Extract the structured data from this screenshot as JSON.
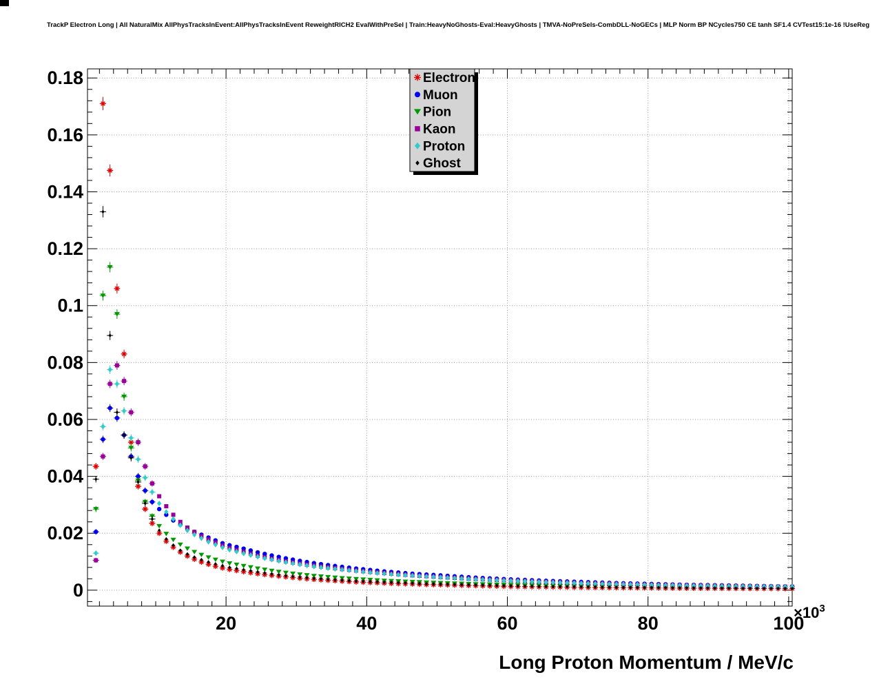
{
  "header": {
    "title": "TrackP Electron Long | All NaturalMix AllPhysTracksInEvent:AllPhysTracksInEvent ReweightRICH2 EvalWithPreSel | Train:HeavyNoGhosts-Eval:HeavyGhosts | TMVA-NoPreSels-CombDLL-NoGECs | MLP Norm BP NCycles750 CE tanh SF1.4 CVTest15:1e-16 !UseReg"
  },
  "chart_data": {
    "type": "scatter",
    "title": "TrackP Electron Long",
    "xlabel": "Long Proton Momentum / MeV/c",
    "ylabel": "",
    "x_multiplier_base": "×10",
    "x_multiplier_exp": "3",
    "xlim": [
      0.3,
      100.5
    ],
    "ylim": [
      -0.0056,
      0.1832
    ],
    "grid": true,
    "legend_position": "top-center",
    "x_tick_values": [
      20,
      40,
      60,
      80,
      100
    ],
    "x_tick_labels": [
      "20",
      "40",
      "60",
      "80",
      "100"
    ],
    "y_tick_values": [
      0,
      0.02,
      0.04,
      0.06,
      0.08,
      0.1,
      0.12,
      0.14,
      0.16,
      0.18
    ],
    "y_tick_labels": [
      "0",
      "0.02",
      "0.04",
      "0.06",
      "0.08",
      "0.1",
      "0.12",
      "0.14",
      "0.16",
      "0.18"
    ],
    "x_minor_step": 2,
    "y_minor_step": 0.004,
    "x": [
      1.5,
      2.5,
      3.5,
      4.5,
      5.5,
      6.5,
      7.5,
      8.5,
      9.5,
      10.5,
      11.5,
      12.5,
      13.5,
      14.5,
      15.5,
      16.5,
      17.5,
      18.5,
      19.5,
      20.5,
      22.5,
      24.5,
      26.5,
      28.5,
      30.5,
      32.5,
      34.5,
      36.5,
      38.5,
      40.5,
      42.5,
      44.5,
      46.5,
      48.5,
      50.5,
      55.5,
      60.5,
      65.5,
      70.5,
      75.5,
      80.5,
      85.5,
      90.5,
      95.5,
      100.5
    ],
    "series": [
      {
        "name": "Electron",
        "color": "#e00000",
        "marker": "star",
        "values": [
          0.0435,
          0.171,
          0.1475,
          0.106,
          0.083,
          0.052,
          0.0365,
          0.0285,
          0.0235,
          0.02,
          0.0172,
          0.0151,
          0.0134,
          0.012,
          0.0109,
          0.0099,
          0.0091,
          0.0084,
          0.0078,
          0.0073,
          0.0065,
          0.0058,
          0.0052,
          0.0047,
          0.0042,
          0.0038,
          0.0035,
          0.0032,
          0.0029,
          0.0027,
          0.0025,
          0.0023,
          0.0022,
          0.002,
          0.0019,
          0.0016,
          0.0013,
          0.0012,
          0.001,
          0.0009,
          0.0008,
          0.0007,
          0.00065,
          0.0006,
          0.00055
        ]
      },
      {
        "name": "Muon",
        "color": "#0000ee",
        "marker": "circle",
        "values": [
          0.0205,
          0.053,
          0.064,
          0.0605,
          0.0545,
          0.047,
          0.04,
          0.035,
          0.031,
          0.0285,
          0.0265,
          0.0245,
          0.023,
          0.0215,
          0.0205,
          0.0195,
          0.0185,
          0.0175,
          0.0165,
          0.0158,
          0.0146,
          0.0133,
          0.0122,
          0.0112,
          0.0103,
          0.0095,
          0.0088,
          0.0082,
          0.0076,
          0.0071,
          0.0066,
          0.0062,
          0.0058,
          0.0055,
          0.0052,
          0.0044,
          0.0038,
          0.0033,
          0.0029,
          0.0025,
          0.0022,
          0.0019,
          0.0017,
          0.0015,
          0.0013
        ]
      },
      {
        "name": "Pion",
        "color": "#009900",
        "marker": "triangle-down",
        "values": [
          0.0285,
          0.1035,
          0.1135,
          0.097,
          0.068,
          0.05,
          0.0385,
          0.031,
          0.026,
          0.0225,
          0.0198,
          0.0177,
          0.016,
          0.0146,
          0.0134,
          0.0124,
          0.0115,
          0.0107,
          0.01,
          0.0094,
          0.0085,
          0.0076,
          0.0068,
          0.0061,
          0.0055,
          0.005,
          0.0046,
          0.0042,
          0.0039,
          0.0036,
          0.0033,
          0.0031,
          0.0029,
          0.0027,
          0.0025,
          0.0021,
          0.0018,
          0.0015,
          0.0013,
          0.0012,
          0.001,
          0.0009,
          0.0008,
          0.0007,
          0.00065
        ]
      },
      {
        "name": "Kaon",
        "color": "#990099",
        "marker": "square",
        "values": [
          0.0105,
          0.047,
          0.0725,
          0.079,
          0.0735,
          0.0625,
          0.052,
          0.0435,
          0.0375,
          0.033,
          0.0295,
          0.0265,
          0.024,
          0.022,
          0.0205,
          0.019,
          0.0178,
          0.0167,
          0.0157,
          0.0148,
          0.0134,
          0.0121,
          0.011,
          0.0101,
          0.0093,
          0.0086,
          0.008,
          0.0074,
          0.0069,
          0.0064,
          0.006,
          0.0056,
          0.0052,
          0.0049,
          0.0046,
          0.0039,
          0.0034,
          0.0029,
          0.0025,
          0.0022,
          0.0019,
          0.0017,
          0.0015,
          0.0013,
          0.0012
        ]
      },
      {
        "name": "Proton",
        "color": "#33cccc",
        "marker": "diamond",
        "values": [
          0.013,
          0.0575,
          0.0775,
          0.0725,
          0.063,
          0.0535,
          0.046,
          0.0395,
          0.0345,
          0.0305,
          0.0275,
          0.025,
          0.0228,
          0.021,
          0.0195,
          0.0182,
          0.017,
          0.016,
          0.015,
          0.0142,
          0.0129,
          0.0117,
          0.0107,
          0.0098,
          0.009,
          0.0083,
          0.0077,
          0.0072,
          0.0067,
          0.0062,
          0.0058,
          0.0054,
          0.0051,
          0.0048,
          0.0045,
          0.0038,
          0.0033,
          0.0028,
          0.0024,
          0.0021,
          0.0018,
          0.0016,
          0.0014,
          0.0013,
          0.0012
        ]
      },
      {
        "name": "Ghost",
        "color": "#000000",
        "marker": "small-diamond",
        "values": [
          0.039,
          0.133,
          0.0895,
          0.0625,
          0.0545,
          0.0465,
          0.038,
          0.0305,
          0.025,
          0.021,
          0.018,
          0.0158,
          0.014,
          0.0127,
          0.0116,
          0.0107,
          0.0099,
          0.0092,
          0.0086,
          0.008,
          0.0072,
          0.0064,
          0.0057,
          0.0051,
          0.0046,
          0.0042,
          0.0038,
          0.0035,
          0.0032,
          0.003,
          0.0028,
          0.0026,
          0.0024,
          0.0022,
          0.0021,
          0.0018,
          0.0015,
          0.0013,
          0.0012,
          0.001,
          0.0009,
          0.0008,
          0.0007,
          0.00065,
          0.0006
        ]
      }
    ]
  }
}
